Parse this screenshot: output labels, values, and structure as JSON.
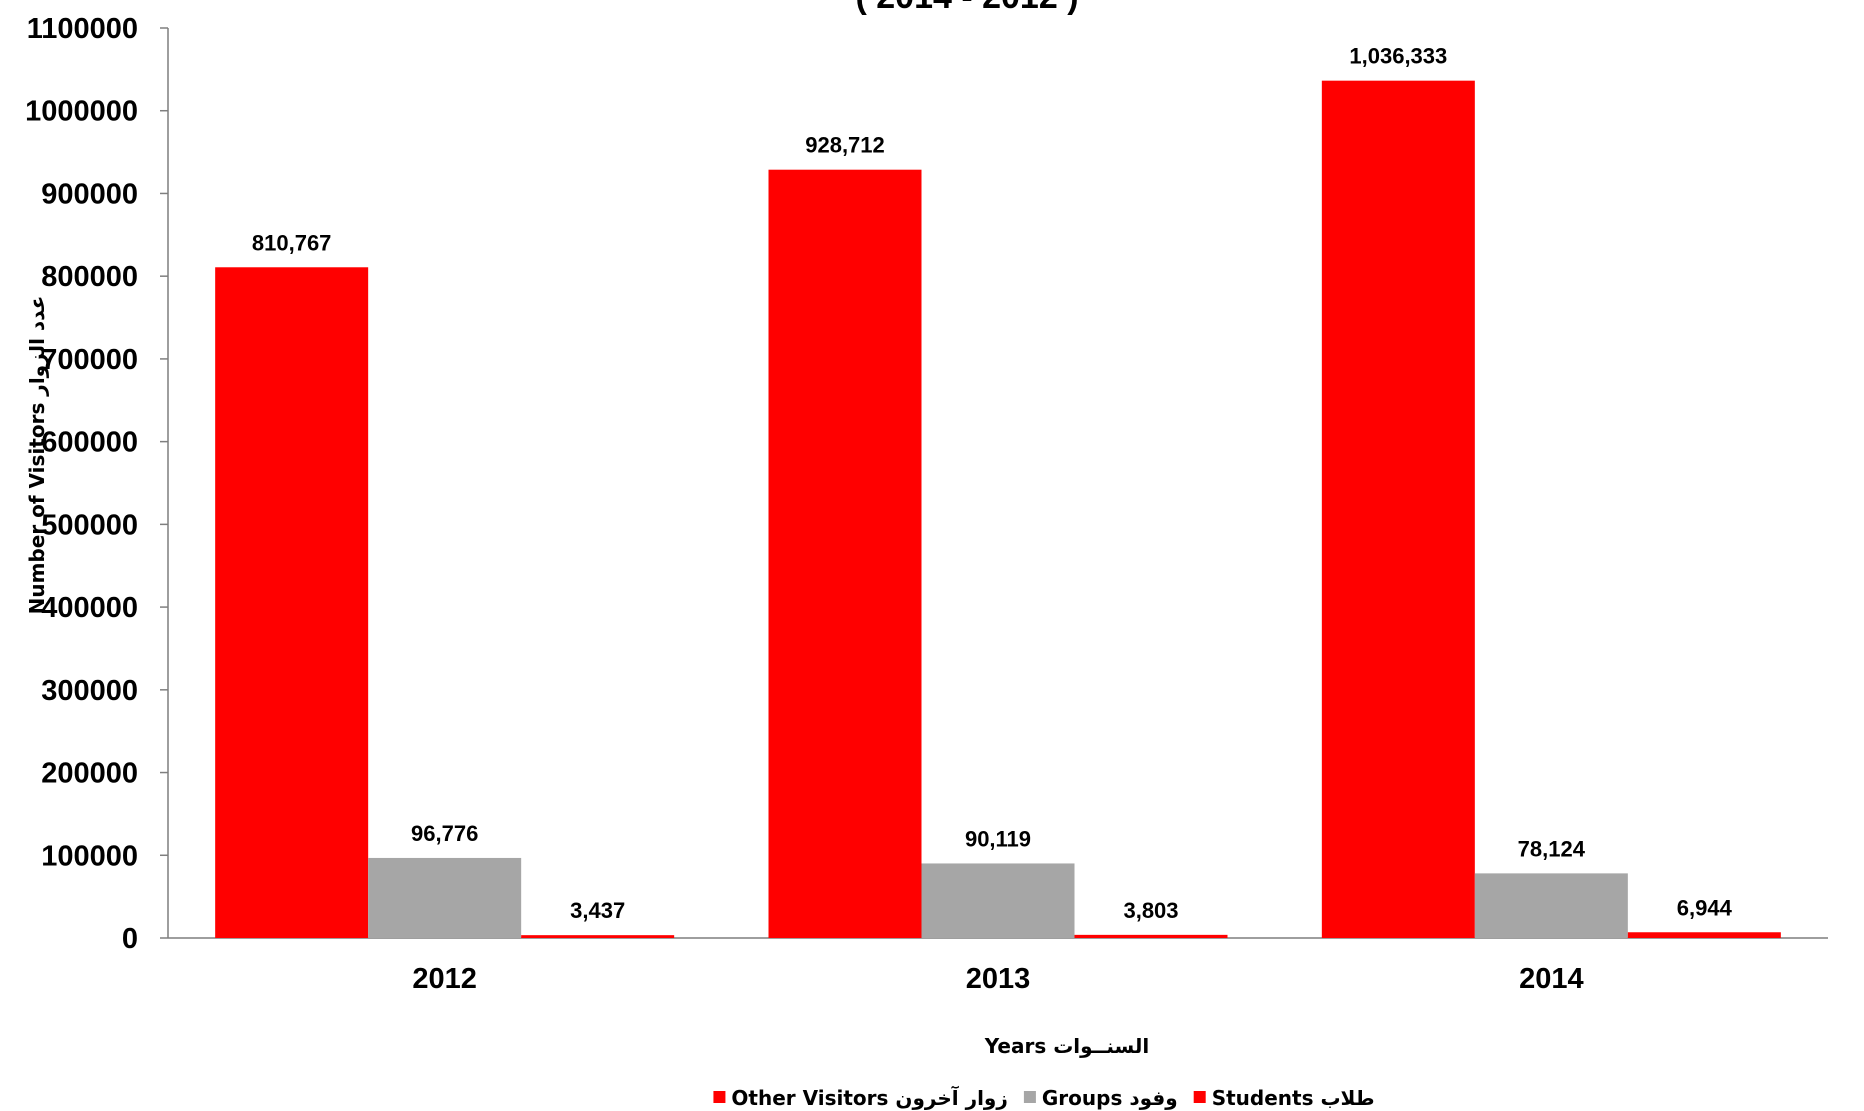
{
  "chart_data": {
    "type": "bar",
    "title": "( 2014 - 2012 )",
    "xlabel": "Years  السنــوات",
    "ylabel": "Number of  Visitors  عدد الزوار",
    "categories": [
      "2012",
      "2013",
      "2014"
    ],
    "ylim": [
      0,
      1100000
    ],
    "yticks": [
      0,
      100000,
      200000,
      300000,
      400000,
      500000,
      600000,
      700000,
      800000,
      900000,
      1000000,
      1100000
    ],
    "grid": false,
    "legend_position": "bottom",
    "series": [
      {
        "name": "Other Visitors  زوار آخرون",
        "color": "#ff0000",
        "values": [
          810767,
          928712,
          1036333
        ],
        "labels": [
          "810,767",
          "928,712",
          "1,036,333"
        ]
      },
      {
        "name": "Groups  وفود",
        "color": "#a6a6a6",
        "values": [
          96776,
          90119,
          78124
        ],
        "labels": [
          "96,776",
          "90,119",
          "78,124"
        ]
      },
      {
        "name": "Students طلاب",
        "color": "#ff0000",
        "values": [
          3437,
          3803,
          6944
        ],
        "labels": [
          "3,437",
          "3,803",
          "6,944"
        ]
      }
    ]
  }
}
